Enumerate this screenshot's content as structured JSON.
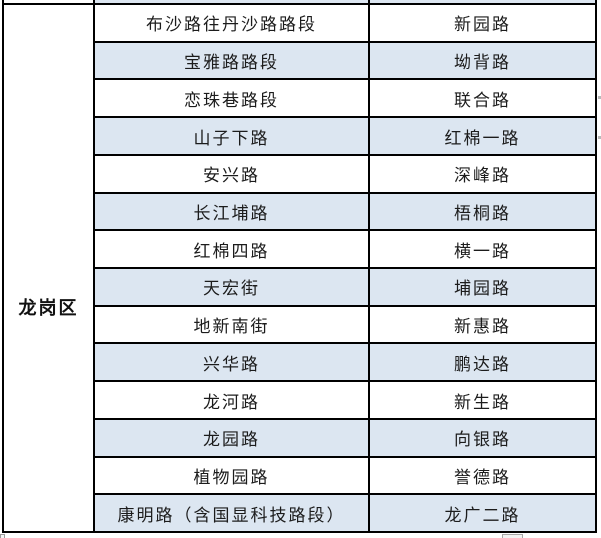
{
  "district_column": {
    "label": "龙岗区"
  },
  "road_table": {
    "rows": [
      {
        "left": "布沙路往丹沙路路段",
        "right": "新园路"
      },
      {
        "left": "宝雅路路段",
        "right": "坳背路"
      },
      {
        "left": "恋珠巷路段",
        "right": "联合路"
      },
      {
        "left": "山子下路",
        "right": "红棉一路"
      },
      {
        "left": "安兴路",
        "right": "深峰路"
      },
      {
        "left": "长江埔路",
        "right": "梧桐路"
      },
      {
        "left": "红棉四路",
        "right": "横一路"
      },
      {
        "left": "天宏街",
        "right": "埔园路"
      },
      {
        "left": "地新南街",
        "right": "新惠路"
      },
      {
        "left": "兴华路",
        "right": "鹏达路"
      },
      {
        "left": "龙河路",
        "right": "新生路"
      },
      {
        "left": "龙园路",
        "right": "向银路"
      },
      {
        "left": "植物园路",
        "right": "誉德路"
      },
      {
        "left": "康明路（含国显科技路段）",
        "right": "龙广二路"
      }
    ]
  },
  "colors": {
    "row_highlight": "#dce6f1",
    "table_border": "#000000",
    "text": "#1c1c1c"
  }
}
